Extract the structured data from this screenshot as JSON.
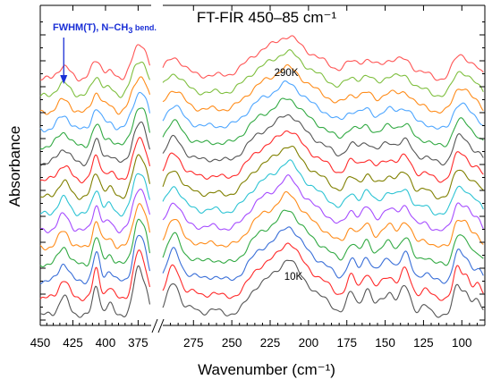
{
  "chart_data": {
    "type": "line",
    "title": "FT-FIR  450–85 cm⁻¹",
    "xlabel": "Wavenumber (cm⁻¹)",
    "ylabel": "Absorbance",
    "x_axis": {
      "reversed": true,
      "broken": true,
      "segment_left": {
        "range": [
          450,
          365
        ],
        "ticks": [
          450,
          425,
          400,
          375
        ]
      },
      "segment_right": {
        "range": [
          295,
          85
        ],
        "ticks": [
          275,
          250,
          225,
          200,
          175,
          150,
          125,
          100
        ]
      }
    },
    "y_axis": {
      "tick_labels": false,
      "minor_ticks": true
    },
    "grid": false,
    "series_count": 15,
    "series_colors": [
      "#555555",
      "#ff2a2a",
      "#3a6fd8",
      "#33aa44",
      "#ff8c1a",
      "#a64dff",
      "#2ec4d4",
      "#808000",
      "#ff2a2a",
      "#555555",
      "#33aa44",
      "#4ea6ff",
      "#ff8c1a",
      "#7fbf3f",
      "#ff5555"
    ],
    "temperature_labels": {
      "top": "290K",
      "bottom": "10K"
    },
    "peak_annotation": {
      "main": "FWHM(T), N–CH",
      "subscript": "3",
      "suffix": " bend.",
      "x": 432,
      "color": "#1a2fd6"
    },
    "peaks_left": [
      {
        "x": 432,
        "a": 0.55,
        "w": 3.5
      },
      {
        "x": 407,
        "a": 0.85,
        "w": 2.5
      },
      {
        "x": 397,
        "a": 0.32,
        "w": 2.5
      },
      {
        "x": 375,
        "a": 1.35,
        "w": 3.5
      },
      {
        "x": 369,
        "a": 0.55,
        "w": 2.5
      }
    ],
    "peaks_right": [
      {
        "x": 288,
        "a": 0.95,
        "w": 4
      },
      {
        "x": 276,
        "a": 0.18,
        "w": 4
      },
      {
        "x": 262,
        "a": 0.15,
        "w": 4
      },
      {
        "x": 235,
        "a": 0.35,
        "w": 6
      },
      {
        "x": 222,
        "a": 0.95,
        "w": 10
      },
      {
        "x": 205,
        "a": 0.9,
        "w": 10
      },
      {
        "x": 213,
        "a": 0.35,
        "w": 4
      },
      {
        "x": 188,
        "a": 0.2,
        "w": 5
      },
      {
        "x": 172,
        "a": 0.65,
        "w": 3
      },
      {
        "x": 162,
        "a": 0.75,
        "w": 3
      },
      {
        "x": 153,
        "a": 0.35,
        "w": 3
      },
      {
        "x": 147,
        "a": 0.6,
        "w": 3
      },
      {
        "x": 137,
        "a": 0.85,
        "w": 3.5
      },
      {
        "x": 124,
        "a": 0.25,
        "w": 3
      },
      {
        "x": 103,
        "a": 0.85,
        "w": 2.5
      },
      {
        "x": 97,
        "a": 0.65,
        "w": 2.5
      },
      {
        "x": 90,
        "a": 0.4,
        "w": 2.5
      }
    ]
  }
}
